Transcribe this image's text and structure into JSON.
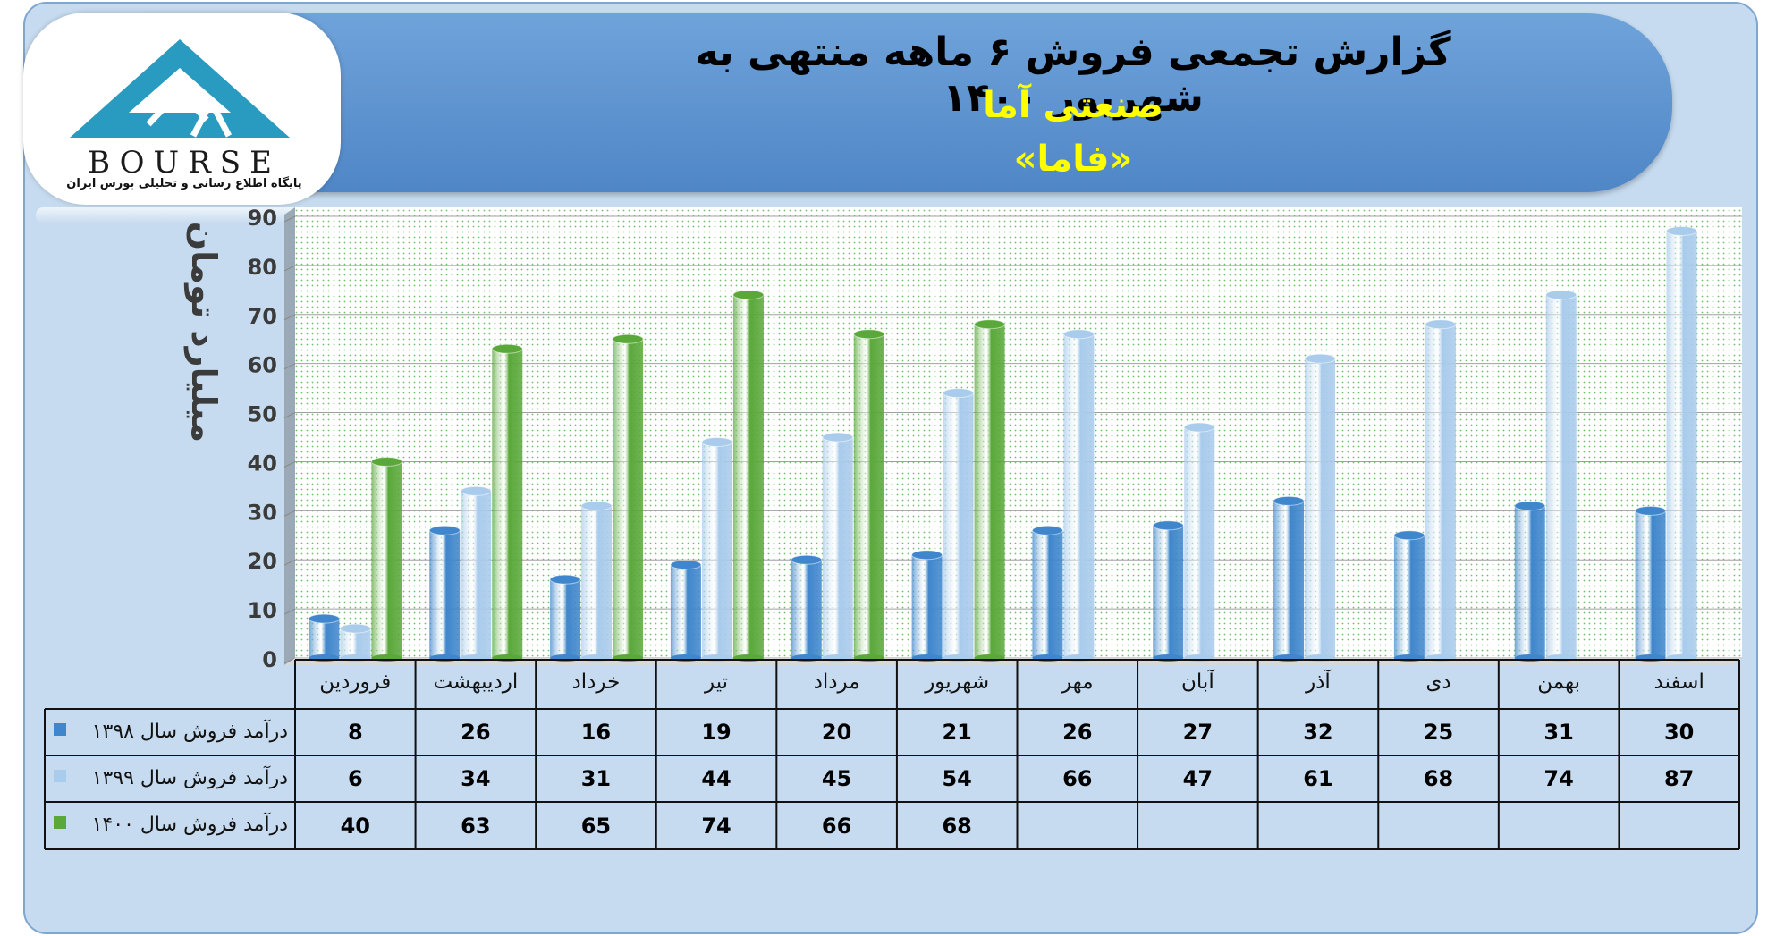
{
  "header": {
    "title": "گزارش تجمعی فروش ۶ ماهه منتهی به شهریور ۱۴۰۰",
    "subtitle": "صنعتی آما",
    "ticker": "«فاما»"
  },
  "logo": {
    "wordmark": "BOURSE",
    "tagline": "پایگاه اطلاع رسانی و تحلیلی بورس ایران",
    "icon": "triangle-24-logo"
  },
  "colors": {
    "series_1398": "#3f86cc",
    "series_1399": "#a9cbec",
    "series_1400": "#5aa83a",
    "frame_bg": "#c6dbef",
    "header_bg": "#5b93d1",
    "subtitle": "#ffff00"
  },
  "chart_data": {
    "type": "bar",
    "categories": [
      "فروردین",
      "اردیبهشت",
      "خرداد",
      "تیر",
      "مرداد",
      "شهریور",
      "مهر",
      "آبان",
      "آذر",
      "دی",
      "بهمن",
      "اسفند"
    ],
    "series": [
      {
        "name": "درآمد فروش سال ۱۳۹۸",
        "values": [
          8,
          26,
          16,
          19,
          20,
          21,
          26,
          27,
          32,
          25,
          31,
          30
        ]
      },
      {
        "name": "درآمد فروش سال ۱۳۹۹",
        "values": [
          6,
          34,
          31,
          44,
          45,
          54,
          66,
          47,
          61,
          68,
          74,
          87
        ]
      },
      {
        "name": "درآمد فروش سال ۱۴۰۰",
        "values": [
          40,
          63,
          65,
          74,
          66,
          68,
          null,
          null,
          null,
          null,
          null,
          null
        ]
      }
    ],
    "ylabel": "میلیارد تومان",
    "ylim": [
      0,
      90
    ],
    "yticks": [
      0,
      10,
      20,
      30,
      40,
      50,
      60,
      70,
      80,
      90
    ],
    "legend": "data-table",
    "grid": true
  }
}
